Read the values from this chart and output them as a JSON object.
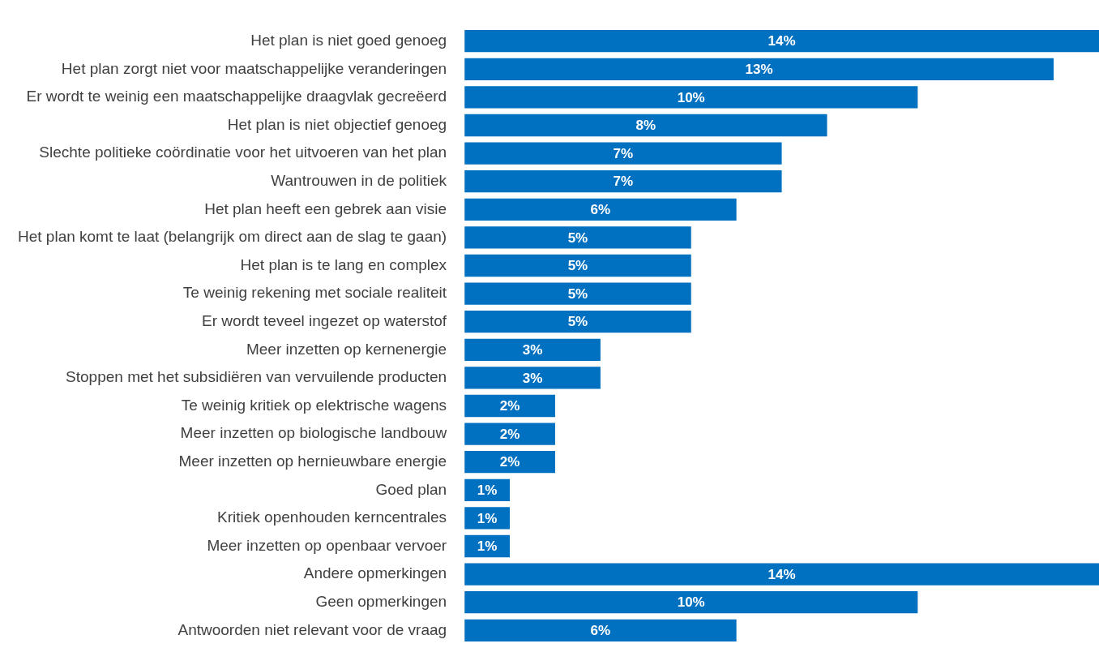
{
  "chart_data": {
    "type": "bar",
    "orientation": "horizontal",
    "categories": [
      "Het plan is niet goed genoeg",
      "Het plan zorgt niet voor maatschappelijke veranderingen",
      "Er wordt te weinig een maatschappelijke draagvlak gecreëerd",
      "Het plan is niet objectief genoeg",
      "Slechte politieke coördinatie voor het uitvoeren van het plan",
      "Wantrouwen in de politiek",
      "Het plan heeft een gebrek aan visie",
      "Het plan komt te laat (belangrijk om direct aan de slag te gaan)",
      "Het plan is te lang en complex",
      "Te weinig rekening met sociale realiteit",
      "Er wordt teveel ingezet op waterstof",
      "Meer inzetten op kernenergie",
      "Stoppen met het subsidiëren van vervuilende producten",
      "Te weinig kritiek op elektrische wagens",
      "Meer inzetten op biologische landbouw",
      "Meer inzetten op hernieuwbare energie",
      "Goed plan",
      "Kritiek openhouden kerncentrales",
      "Meer inzetten op openbaar vervoer",
      "Andere opmerkingen",
      "Geen opmerkingen",
      "Antwoorden niet relevant voor de vraag"
    ],
    "values": [
      14,
      13,
      10,
      8,
      7,
      7,
      6,
      5,
      5,
      5,
      5,
      3,
      3,
      2,
      2,
      2,
      1,
      1,
      1,
      14,
      10,
      6
    ],
    "value_labels": [
      "14%",
      "13%",
      "10%",
      "8%",
      "7%",
      "7%",
      "6%",
      "5%",
      "5%",
      "5%",
      "5%",
      "3%",
      "3%",
      "2%",
      "2%",
      "2%",
      "1%",
      "1%",
      "1%",
      "14%",
      "10%",
      "6%"
    ],
    "color": "#0070c0",
    "grid": false,
    "legend": false,
    "tick_labels": "y"
  }
}
